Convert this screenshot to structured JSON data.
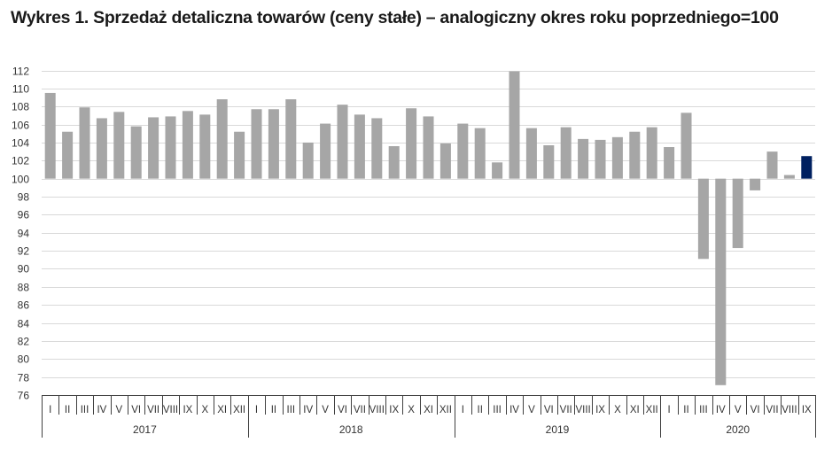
{
  "chart_data": {
    "type": "bar",
    "title": "Wykres 1. Sprzedaż detaliczna towarów (ceny stałe) – analogiczny okres roku poprzedniego=100",
    "baseline": 100,
    "ylim": [
      76,
      112
    ],
    "yticks": [
      76,
      78,
      80,
      82,
      84,
      86,
      88,
      90,
      92,
      94,
      96,
      98,
      100,
      102,
      104,
      106,
      108,
      110,
      112
    ],
    "grid": true,
    "legend": "none",
    "categories": [
      "I",
      "II",
      "III",
      "IV",
      "V",
      "VI",
      "VII",
      "VIII",
      "IX",
      "X",
      "XI",
      "XII",
      "I",
      "II",
      "III",
      "IV",
      "V",
      "VI",
      "VII",
      "VIII",
      "IX",
      "X",
      "XI",
      "XII",
      "I",
      "II",
      "III",
      "IV",
      "V",
      "VI",
      "VII",
      "VIII",
      "IX",
      "X",
      "XI",
      "XII",
      "I",
      "II",
      "III",
      "IV",
      "V",
      "VI",
      "VII",
      "VIII",
      "IX"
    ],
    "groups": [
      {
        "label": "2017",
        "count": 12
      },
      {
        "label": "2018",
        "count": 12
      },
      {
        "label": "2019",
        "count": 12
      },
      {
        "label": "2020",
        "count": 9
      }
    ],
    "values": [
      109.5,
      105.2,
      107.9,
      106.7,
      107.4,
      105.8,
      106.8,
      106.9,
      107.5,
      107.1,
      108.8,
      105.2,
      107.7,
      107.7,
      108.8,
      104.0,
      106.1,
      108.2,
      107.1,
      106.7,
      103.6,
      107.8,
      106.9,
      103.9,
      106.1,
      105.6,
      101.8,
      111.9,
      105.6,
      103.7,
      105.7,
      104.4,
      104.3,
      104.6,
      105.2,
      105.7,
      103.5,
      107.3,
      91.1,
      77.1,
      92.3,
      98.7,
      103.0,
      100.4,
      102.5
    ],
    "colors": {
      "bar": "#a6a6a6",
      "highlight": "#002060",
      "grid": "#d9d9d9",
      "axis": "#404040"
    },
    "highlight_index": 44
  }
}
